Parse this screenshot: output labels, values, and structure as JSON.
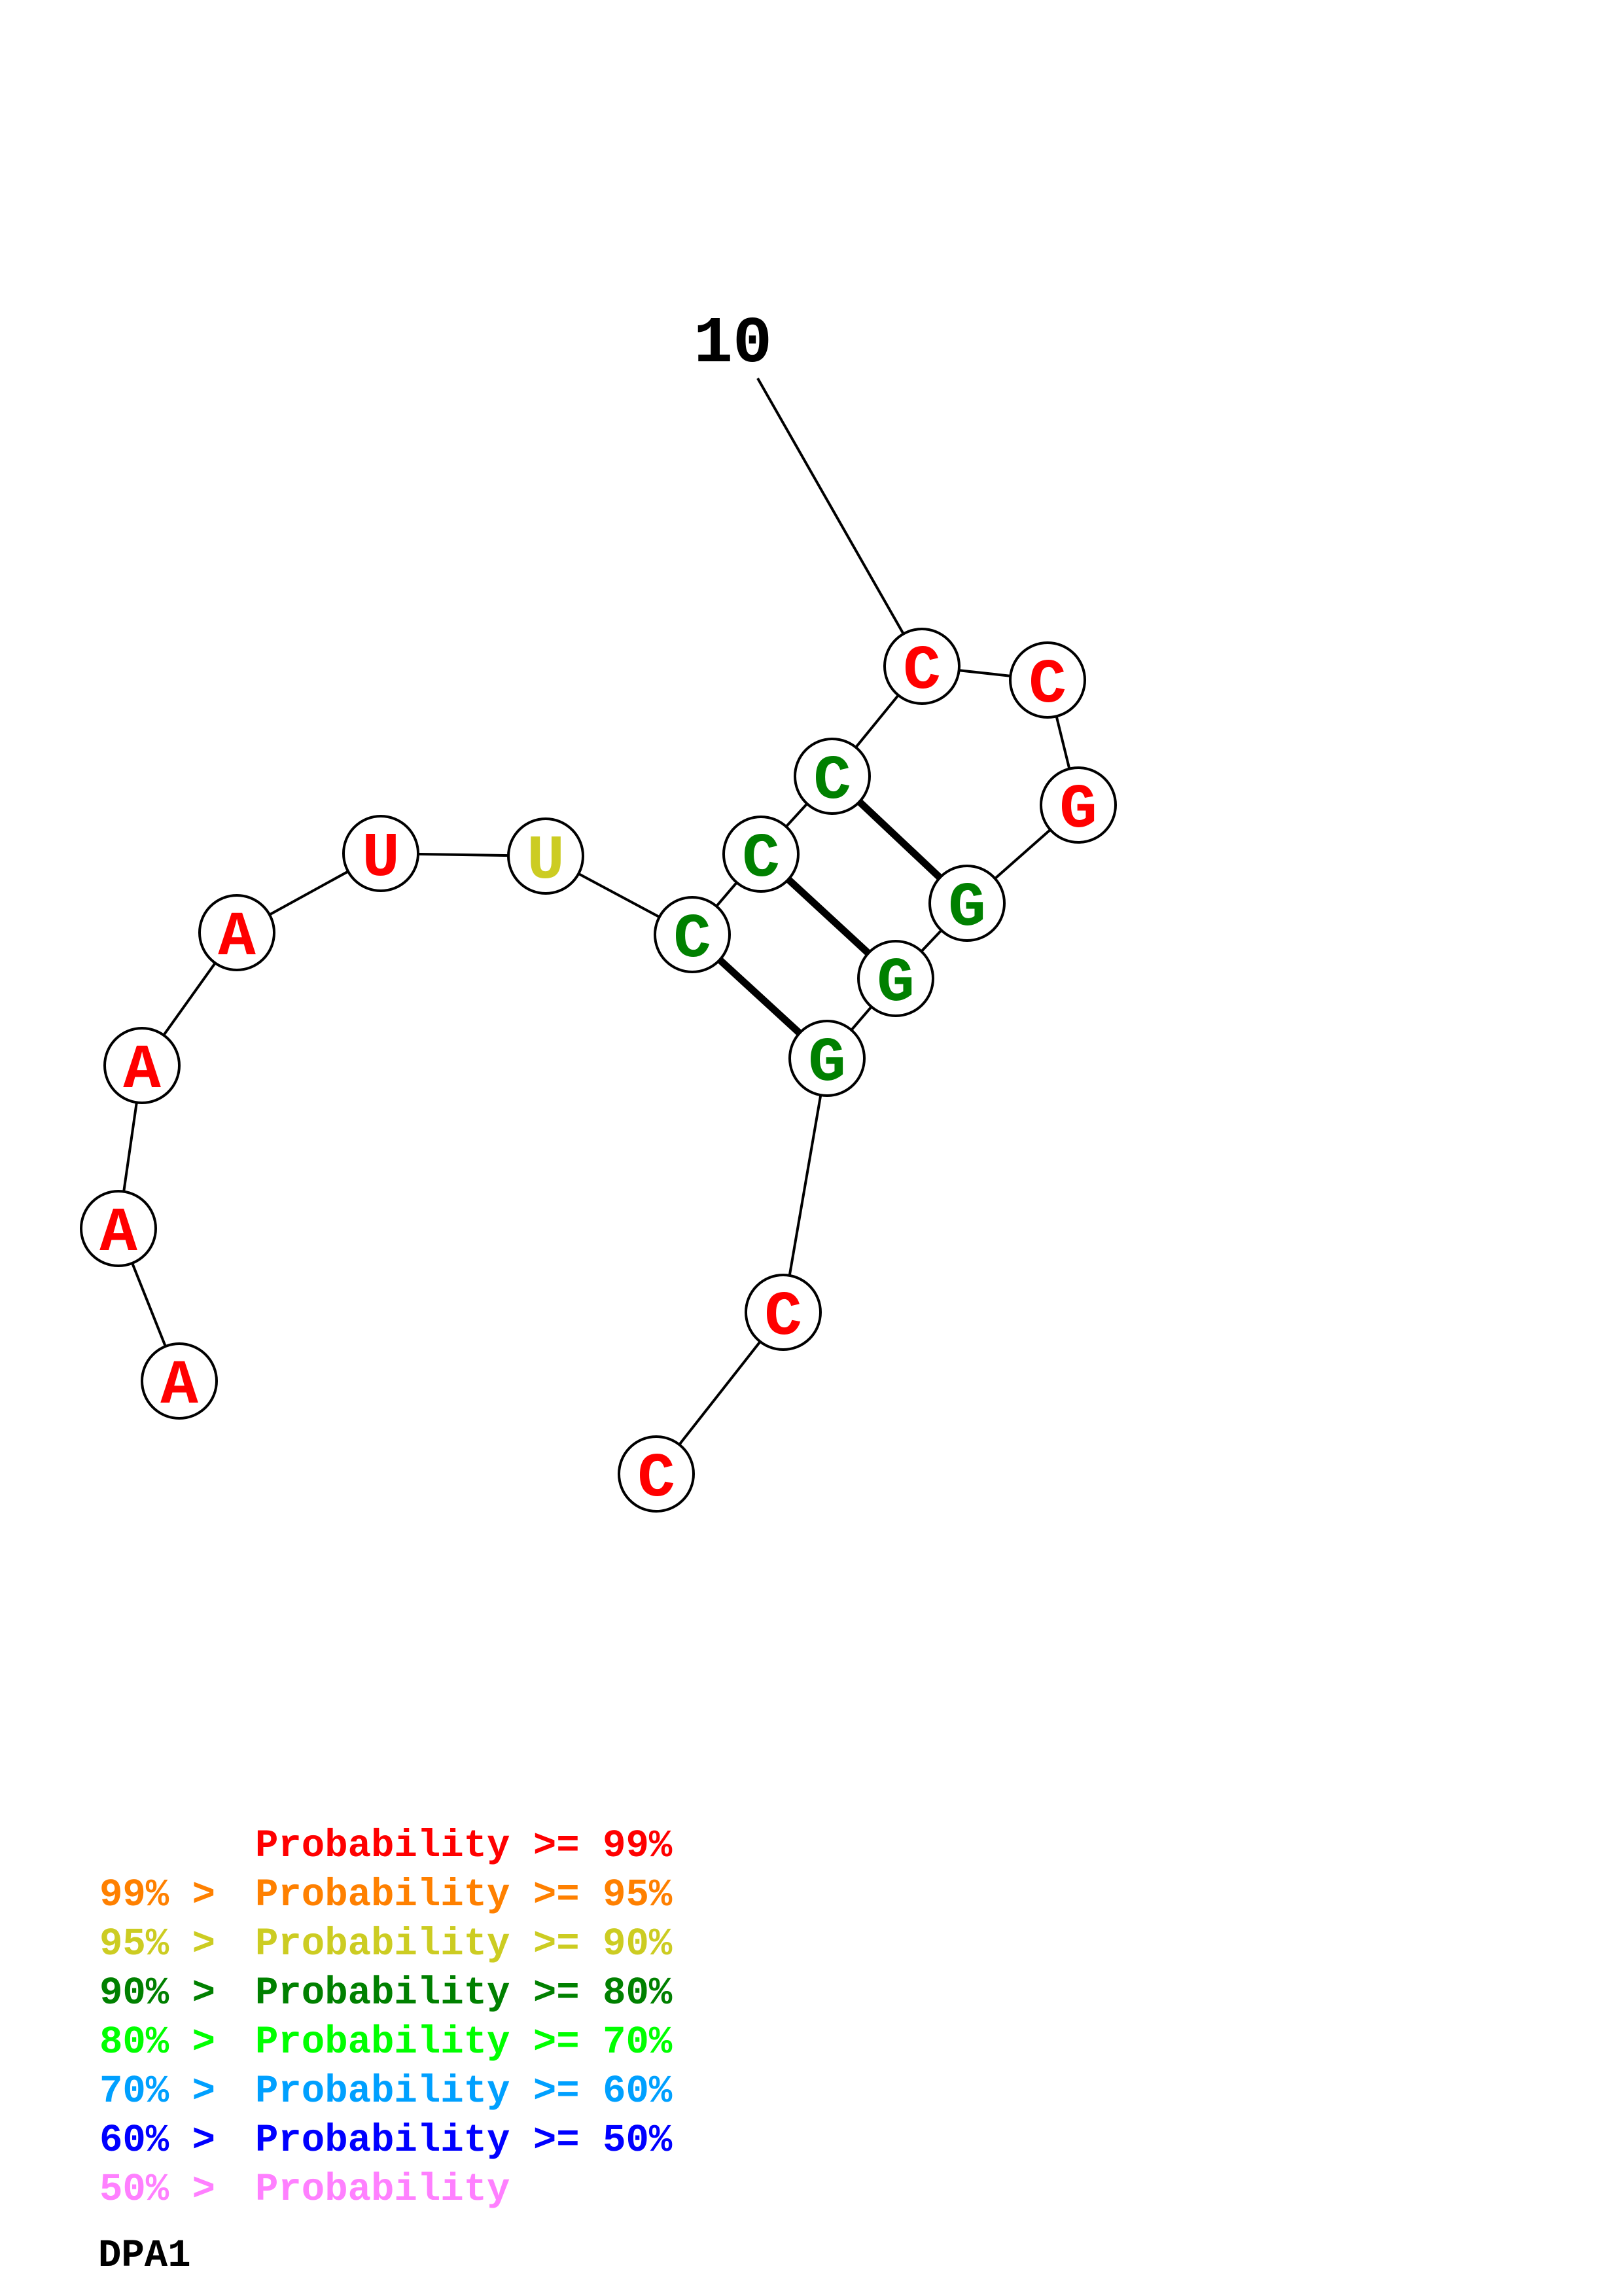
{
  "colors": {
    "p99": "#ff0000",
    "p95": "#ff8000",
    "p90": "#cccc22",
    "p80": "#008000",
    "p70": "#00ff00",
    "p60": "#00a0ff",
    "p50": "#0000ff",
    "plow": "#ff80ff"
  },
  "nucleotides": [
    {
      "base": "A",
      "prob": "p99"
    },
    {
      "base": "A",
      "prob": "p99"
    },
    {
      "base": "A",
      "prob": "p99"
    },
    {
      "base": "A",
      "prob": "p99"
    },
    {
      "base": "U",
      "prob": "p99"
    },
    {
      "base": "U",
      "prob": "p90"
    },
    {
      "base": "C",
      "prob": "p80"
    },
    {
      "base": "C",
      "prob": "p80"
    },
    {
      "base": "C",
      "prob": "p80"
    },
    {
      "base": "C",
      "prob": "p99"
    },
    {
      "base": "C",
      "prob": "p99"
    },
    {
      "base": "G",
      "prob": "p99"
    },
    {
      "base": "G",
      "prob": "p80"
    },
    {
      "base": "G",
      "prob": "p80"
    },
    {
      "base": "G",
      "prob": "p80"
    },
    {
      "base": "C",
      "prob": "p99"
    },
    {
      "base": "C",
      "prob": "p99"
    }
  ],
  "base_pairs": [
    [
      7,
      15
    ],
    [
      8,
      14
    ],
    [
      9,
      13
    ]
  ],
  "position_labels": [
    {
      "text": "10",
      "index": 10
    }
  ],
  "legend": [
    {
      "prefix": "",
      "text": "Probability >= 99%",
      "color": "p99"
    },
    {
      "prefix": "99% > ",
      "text": "Probability >= 95%",
      "color": "p95"
    },
    {
      "prefix": "95% > ",
      "text": "Probability >= 90%",
      "color": "p90"
    },
    {
      "prefix": "90% > ",
      "text": "Probability >= 80%",
      "color": "p80"
    },
    {
      "prefix": "80% > ",
      "text": "Probability >= 70%",
      "color": "p70"
    },
    {
      "prefix": "70% > ",
      "text": "Probability >= 60%",
      "color": "p60"
    },
    {
      "prefix": "60% > ",
      "text": "Probability >= 50%",
      "color": "p50"
    },
    {
      "prefix": "50% > ",
      "text": "Probability",
      "color": "plow"
    }
  ],
  "structure_name": "DPA1"
}
